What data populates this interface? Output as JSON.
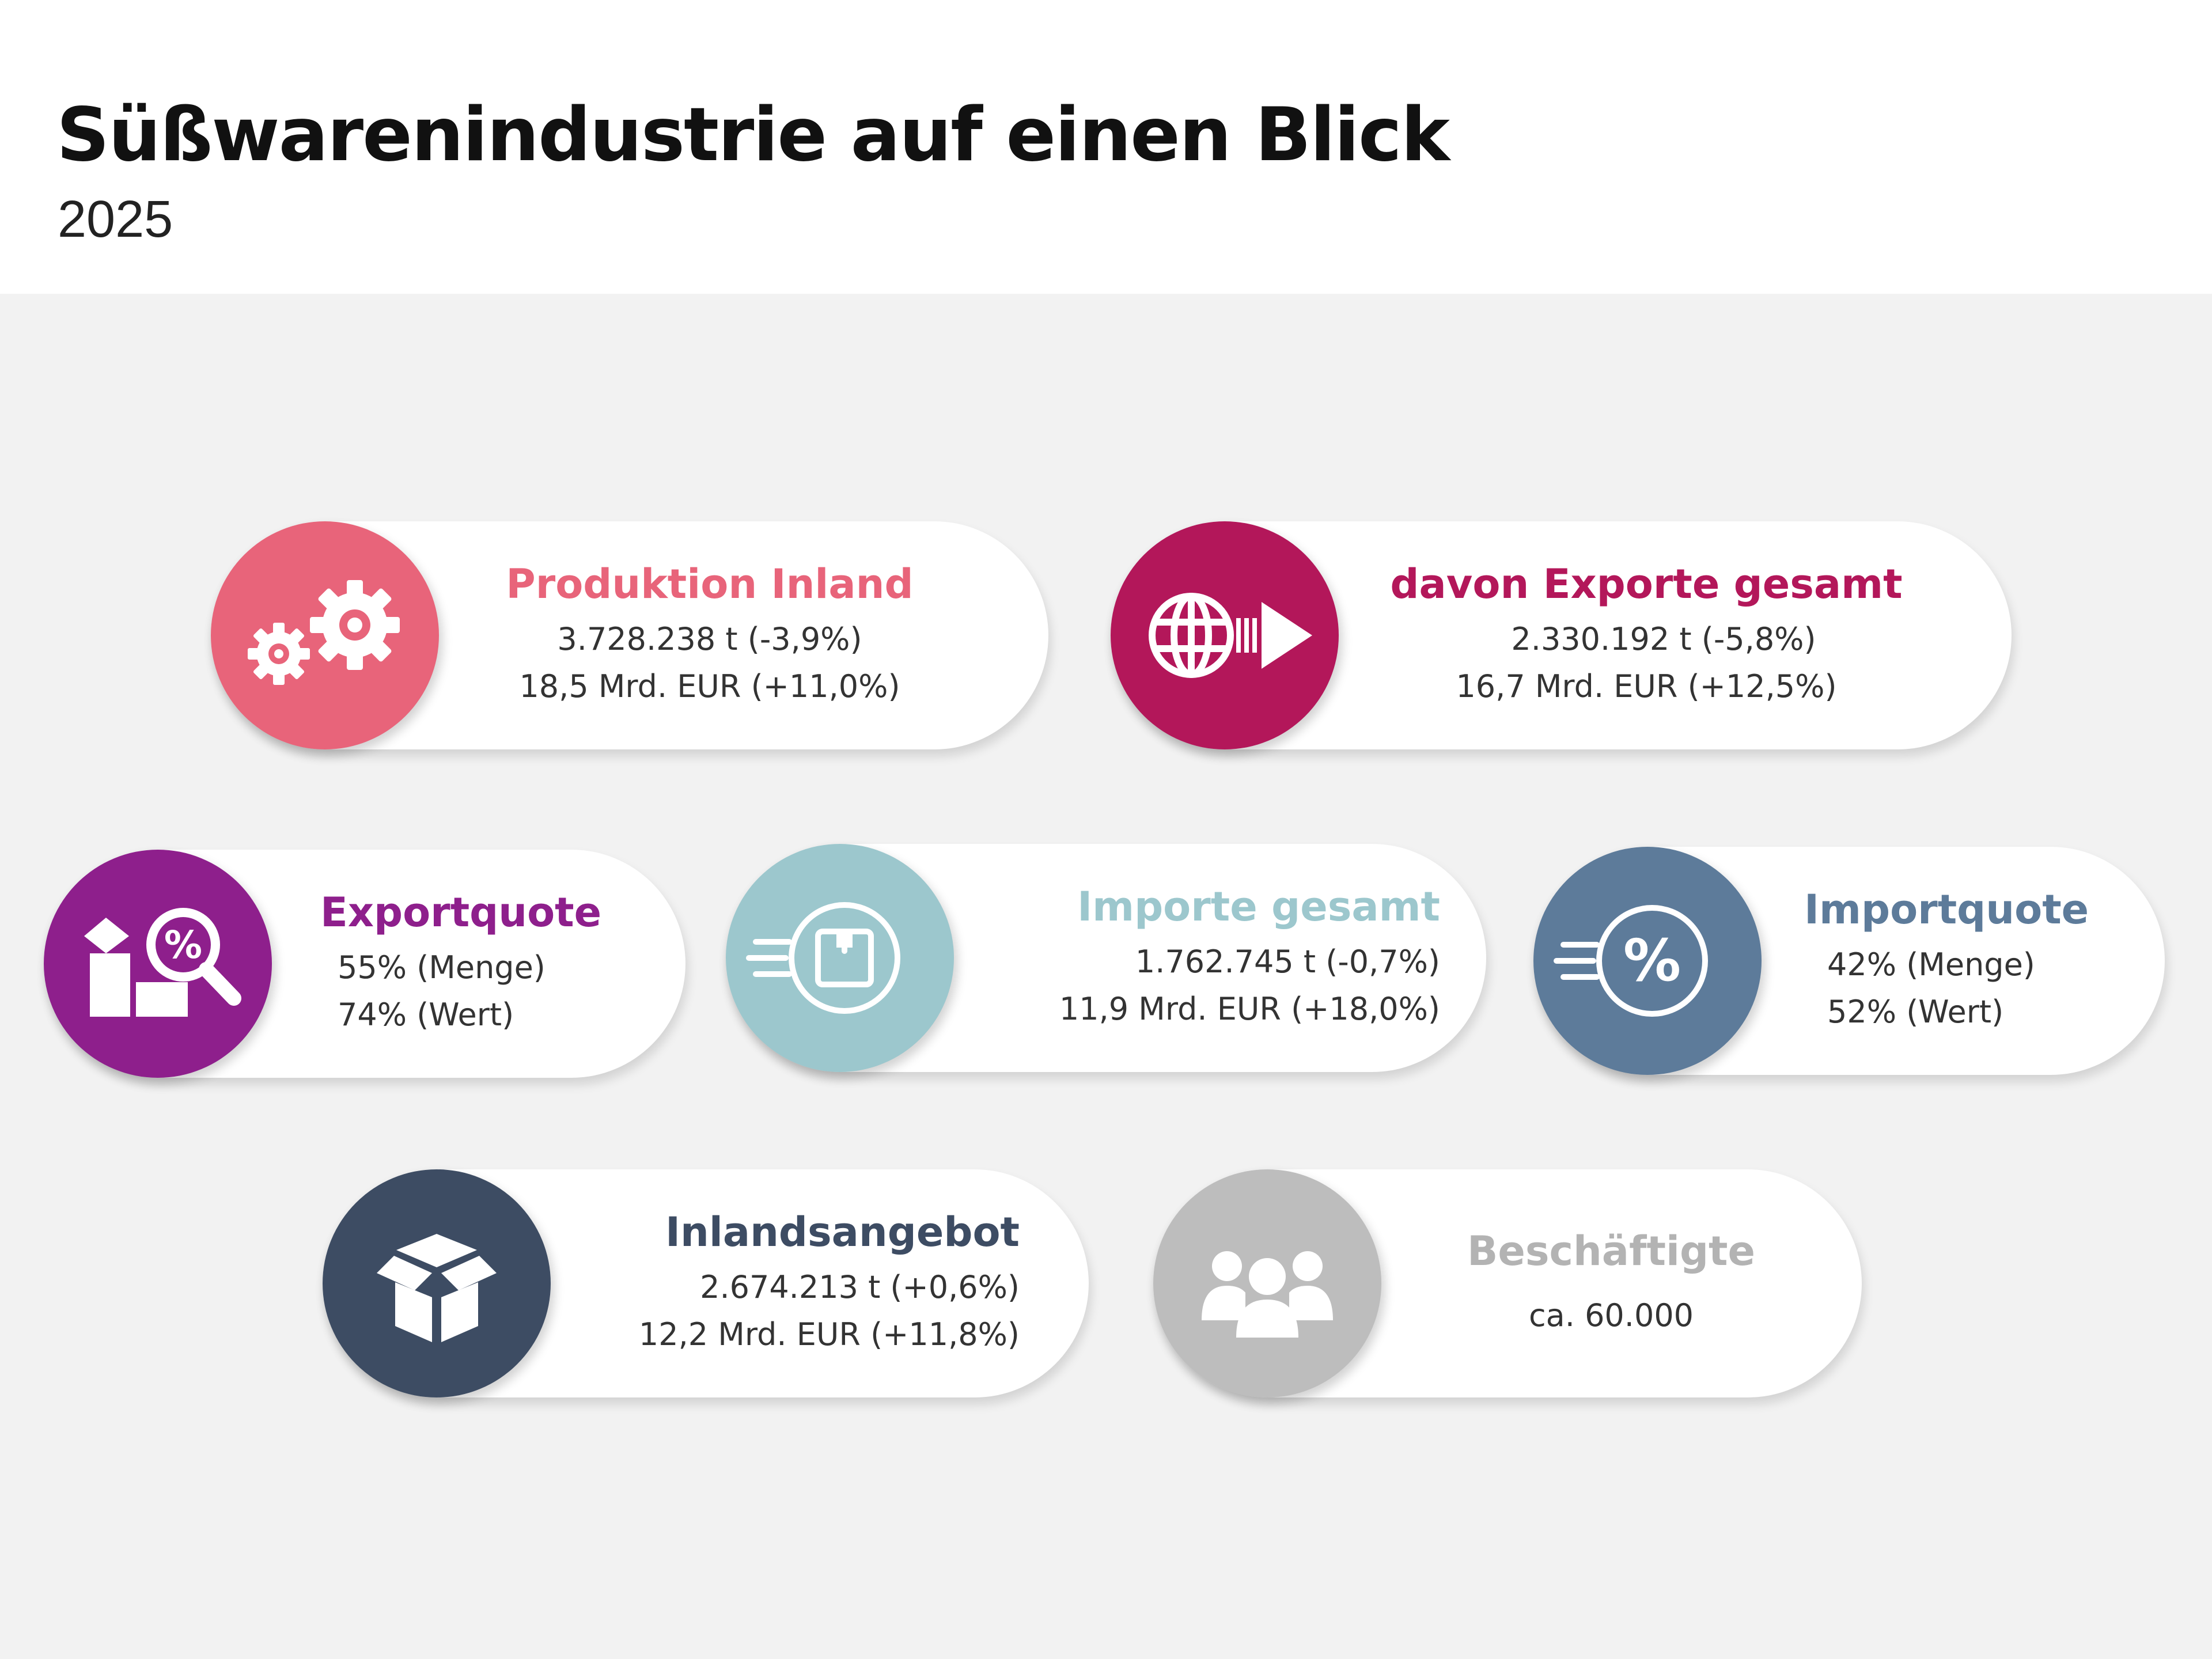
{
  "header": {
    "title": "Süßwarenindustrie auf einen Blick",
    "year": "2025"
  },
  "cards": {
    "produktion": {
      "title": "Produktion Inland",
      "line1": "3.728.238 t (-3,9%)",
      "line2": "18,5 Mrd. EUR (+11,0%)",
      "color": "#e8647a",
      "icon": "gears-icon"
    },
    "exporte": {
      "title": "davon Exporte gesamt",
      "line1": "2.330.192 t (-5,8%)",
      "line2": "16,7 Mrd. EUR (+12,5%)",
      "color": "#b3175a",
      "icon": "globe-arrow-icon"
    },
    "exportquote": {
      "title": "Exportquote",
      "line1": "55% (Menge)",
      "line2": "74% (Wert)",
      "color": "#8e1f8c",
      "icon": "box-magnifier-percent-icon"
    },
    "importe": {
      "title": "Importe gesamt",
      "line1": "1.762.745 t (-0,7%)",
      "line2": "11,9 Mrd. EUR (+18,0%)",
      "color": "#9cc7cd",
      "icon": "incoming-package-icon"
    },
    "importquote": {
      "title": "Importquote",
      "line1": "42% (Menge)",
      "line2": "52% (Wert)",
      "color": "#5d7b9a",
      "icon": "incoming-percent-icon"
    },
    "inlandsangebot": {
      "title": "Inlandsangebot",
      "line1": "2.674.213 t (+0,6%)",
      "line2": "12,2 Mrd. EUR (+11,8%)",
      "color": "#3d4c63",
      "icon": "open-box-icon"
    },
    "beschaeftigte": {
      "title": "Beschäftigte",
      "line1": "ca. 60.000",
      "color": "#bdbdbd",
      "icon": "people-group-icon"
    }
  }
}
